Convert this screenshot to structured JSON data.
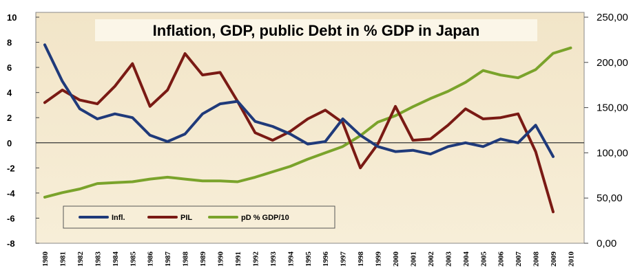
{
  "chart_data": {
    "type": "line",
    "title": "Inflation, GDP, public Debt in % GDP in Japan",
    "x": [
      "1980",
      "1981",
      "1982",
      "1983",
      "1984",
      "1985",
      "1986",
      "1987",
      "1988",
      "1989",
      "1990",
      "1991",
      "1992",
      "1993",
      "1994",
      "1995",
      "1996",
      "1997",
      "1998",
      "1999",
      "2000",
      "2001",
      "2002",
      "2003",
      "2004",
      "2005",
      "2006",
      "2007",
      "2008",
      "2009",
      "2010"
    ],
    "y_left_lim": [
      -8,
      10
    ],
    "y_left_ticks": [
      "10",
      "8",
      "6",
      "4",
      "2",
      "0",
      "-2",
      "-4",
      "-6",
      "-8"
    ],
    "y_right_lim": [
      0,
      250
    ],
    "y_right_ticks": [
      "250,00",
      "200,00",
      "150,00",
      "100,00",
      "50,00",
      "0,00"
    ],
    "grid": false,
    "legend_position": "bottom-left",
    "series": [
      {
        "name": "Infl.",
        "axis": "left",
        "color": "#1f3a7a",
        "values": [
          7.8,
          4.9,
          2.7,
          1.9,
          2.3,
          2.0,
          0.6,
          0.1,
          0.7,
          2.3,
          3.1,
          3.3,
          1.7,
          1.3,
          0.7,
          -0.1,
          0.1,
          1.9,
          0.6,
          -0.3,
          -0.7,
          -0.6,
          -0.9,
          -0.3,
          0.0,
          -0.3,
          0.3,
          0.0,
          1.4,
          -1.1,
          null
        ]
      },
      {
        "name": "PIL",
        "axis": "left",
        "color": "#7a1a14",
        "values": [
          3.2,
          4.2,
          3.4,
          3.1,
          4.5,
          6.3,
          2.9,
          4.2,
          7.1,
          5.4,
          5.6,
          3.3,
          0.8,
          0.2,
          0.9,
          1.9,
          2.6,
          1.6,
          -2.0,
          -0.1,
          2.9,
          0.2,
          0.3,
          1.4,
          2.7,
          1.9,
          2.0,
          2.3,
          -0.7,
          -5.5,
          null
        ]
      },
      {
        "name": "pD % GDP/10",
        "axis": "right",
        "color": "#7aa32b",
        "values": [
          51,
          56,
          60,
          66,
          67,
          68,
          71,
          73,
          71,
          69,
          69,
          68,
          73,
          79,
          85,
          93,
          100,
          107,
          119,
          134,
          141,
          151,
          160,
          168,
          178,
          191,
          186,
          183,
          192,
          210,
          216
        ]
      }
    ]
  }
}
